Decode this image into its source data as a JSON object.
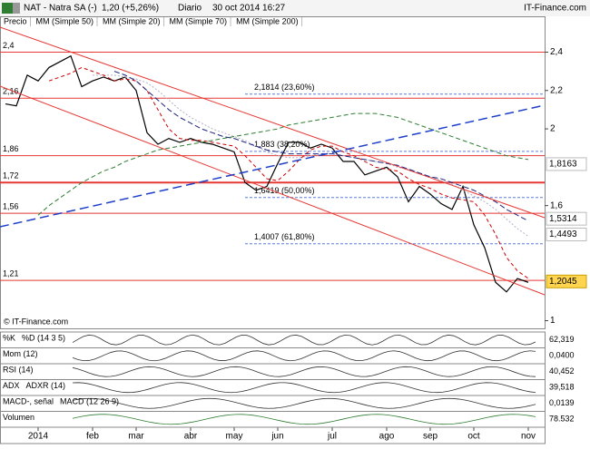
{
  "header": {
    "symbol": "NAT - Natra SA (-)",
    "quote": "1,20 (+5,26%)",
    "period": "Diario",
    "datetime": "30 oct 2014 16:27",
    "brand": "IT-Finance.com"
  },
  "chart_data": {
    "type": "line",
    "watermark": "© IT-Finance.com",
    "categories": [
      null,
      null,
      null,
      "2014",
      null,
      null,
      null,
      null,
      "feb",
      null,
      null,
      null,
      "mar",
      null,
      null,
      null,
      null,
      "abr",
      null,
      null,
      null,
      "may",
      null,
      null,
      null,
      "jun",
      null,
      null,
      null,
      null,
      "jul",
      null,
      null,
      null,
      null,
      "ago",
      null,
      null,
      null,
      "sep",
      null,
      null,
      null,
      "oct",
      null,
      null,
      null,
      null,
      "nov"
    ],
    "series": [
      {
        "name": "Precio",
        "color": "#000000",
        "values": [
          2.13,
          2.12,
          2.28,
          2.25,
          2.32,
          2.35,
          2.38,
          2.22,
          2.25,
          2.27,
          2.25,
          2.27,
          2.2,
          1.98,
          1.92,
          1.95,
          1.93,
          1.95,
          1.93,
          1.92,
          1.9,
          1.88,
          1.72,
          1.68,
          1.7,
          1.82,
          1.93,
          1.93,
          1.9,
          1.92,
          1.9,
          1.83,
          1.83,
          1.76,
          1.78,
          1.8,
          1.75,
          1.62,
          1.7,
          1.66,
          1.61,
          1.58,
          1.7,
          1.5,
          1.38,
          1.2,
          1.15,
          1.22,
          1.2
        ]
      },
      {
        "name": "MM (Simple 50)",
        "color": "#b0b0c8",
        "values": [
          null,
          null,
          null,
          null,
          null,
          null,
          null,
          null,
          2.28,
          2.28,
          2.28,
          2.27,
          2.26,
          2.24,
          2.2,
          2.15,
          2.1,
          2.06,
          2.03,
          2.0,
          1.98,
          1.96,
          1.94,
          1.91,
          1.88,
          1.86,
          1.85,
          1.85,
          1.86,
          1.87,
          1.87,
          1.86,
          1.85,
          1.84,
          1.83,
          1.82,
          1.8,
          1.79,
          1.77,
          1.75,
          1.73,
          1.71,
          1.68,
          1.65,
          1.62,
          1.58,
          1.53,
          1.48,
          1.44
        ]
      },
      {
        "name": "MM (Simple 20)",
        "color": "#cc0000",
        "values": [
          null,
          null,
          null,
          null,
          2.25,
          2.27,
          2.29,
          2.32,
          2.3,
          2.28,
          2.25,
          2.26,
          2.25,
          2.2,
          2.1,
          2.0,
          1.95,
          1.94,
          1.94,
          1.93,
          1.92,
          1.91,
          1.86,
          1.8,
          1.74,
          1.73,
          1.78,
          1.84,
          1.89,
          1.91,
          1.91,
          1.88,
          1.86,
          1.83,
          1.8,
          1.79,
          1.78,
          1.74,
          1.71,
          1.69,
          1.66,
          1.64,
          1.63,
          1.62,
          1.55,
          1.45,
          1.33,
          1.26,
          1.22
        ]
      },
      {
        "name": "MM (Simple 70)",
        "color": "#1a237e",
        "values": [
          null,
          null,
          null,
          null,
          null,
          null,
          null,
          null,
          null,
          null,
          2.3,
          2.28,
          2.25,
          2.2,
          2.15,
          2.1,
          2.06,
          2.03,
          2.0,
          1.98,
          1.96,
          1.95,
          1.93,
          1.91,
          1.89,
          1.88,
          1.87,
          1.87,
          1.87,
          1.87,
          1.87,
          1.86,
          1.85,
          1.84,
          1.83,
          1.82,
          1.81,
          1.79,
          1.77,
          1.75,
          1.74,
          1.72,
          1.7,
          1.68,
          1.65,
          1.62,
          1.58,
          1.55,
          1.52
        ]
      },
      {
        "name": "MM (Simple 200)",
        "color": "#2e7d32",
        "values": [
          null,
          null,
          null,
          1.55,
          1.6,
          1.64,
          1.68,
          1.72,
          1.75,
          1.78,
          1.8,
          1.83,
          1.85,
          1.87,
          1.89,
          1.9,
          1.91,
          1.92,
          1.93,
          1.94,
          1.95,
          1.96,
          1.97,
          1.98,
          1.99,
          2.0,
          2.02,
          2.03,
          2.04,
          2.05,
          2.06,
          2.07,
          2.08,
          2.08,
          2.08,
          2.07,
          2.06,
          2.04,
          2.02,
          2.0,
          1.98,
          1.96,
          1.94,
          1.92,
          1.9,
          1.88,
          1.86,
          1.85,
          1.84
        ]
      }
    ],
    "ylim": [
      0.96,
      2.53
    ],
    "yticks": [
      {
        "value": 2.4,
        "label": "2,4"
      },
      {
        "value": 2.2,
        "label": "2,2"
      },
      2,
      {
        "value": 1.6,
        "label": "1,6"
      },
      1
    ],
    "levels": [
      {
        "value": 2.4,
        "label": "2,4"
      },
      {
        "value": 2.16,
        "label": "2,16"
      },
      {
        "value": 1.86,
        "label": "1,86"
      },
      {
        "value": 1.72,
        "label": "1,72"
      },
      {
        "value": 1.56,
        "label": "1,56"
      },
      {
        "value": 1.21,
        "label": "1,21"
      }
    ],
    "fibonacci": [
      {
        "value": 2.1814,
        "label": "2,1814 (23,60%)"
      },
      {
        "value": 1.883,
        "label": "1,883 (38,20%)"
      },
      {
        "value": 1.6419,
        "label": "1,6419 (50,00%)"
      },
      {
        "value": 1.4007,
        "label": "1,4007 (61,80%)"
      }
    ],
    "price_tags": [
      {
        "value": 1.8163,
        "label": "1,8163"
      },
      {
        "value": 1.5314,
        "label": "1,5314"
      },
      {
        "value": 1.4493,
        "label": "1,4493"
      },
      {
        "value": 1.2045,
        "label": "1,2045"
      }
    ]
  },
  "panels": [
    {
      "label": "%K",
      "legend": "%D (14 3 5)",
      "readout": "62,319"
    },
    {
      "label": "Mom (12)",
      "readout": "0,0400"
    },
    {
      "label": "RSI (14)",
      "readout": "40,452"
    },
    {
      "label": "ADX",
      "legend": "ADXR (14)",
      "readout": "39,518"
    },
    {
      "label": "MACD-, señal",
      "legend": "MACD (12 26 9)",
      "readout": "0,0139"
    },
    {
      "label": "Volumen",
      "readout": "78.532"
    }
  ]
}
